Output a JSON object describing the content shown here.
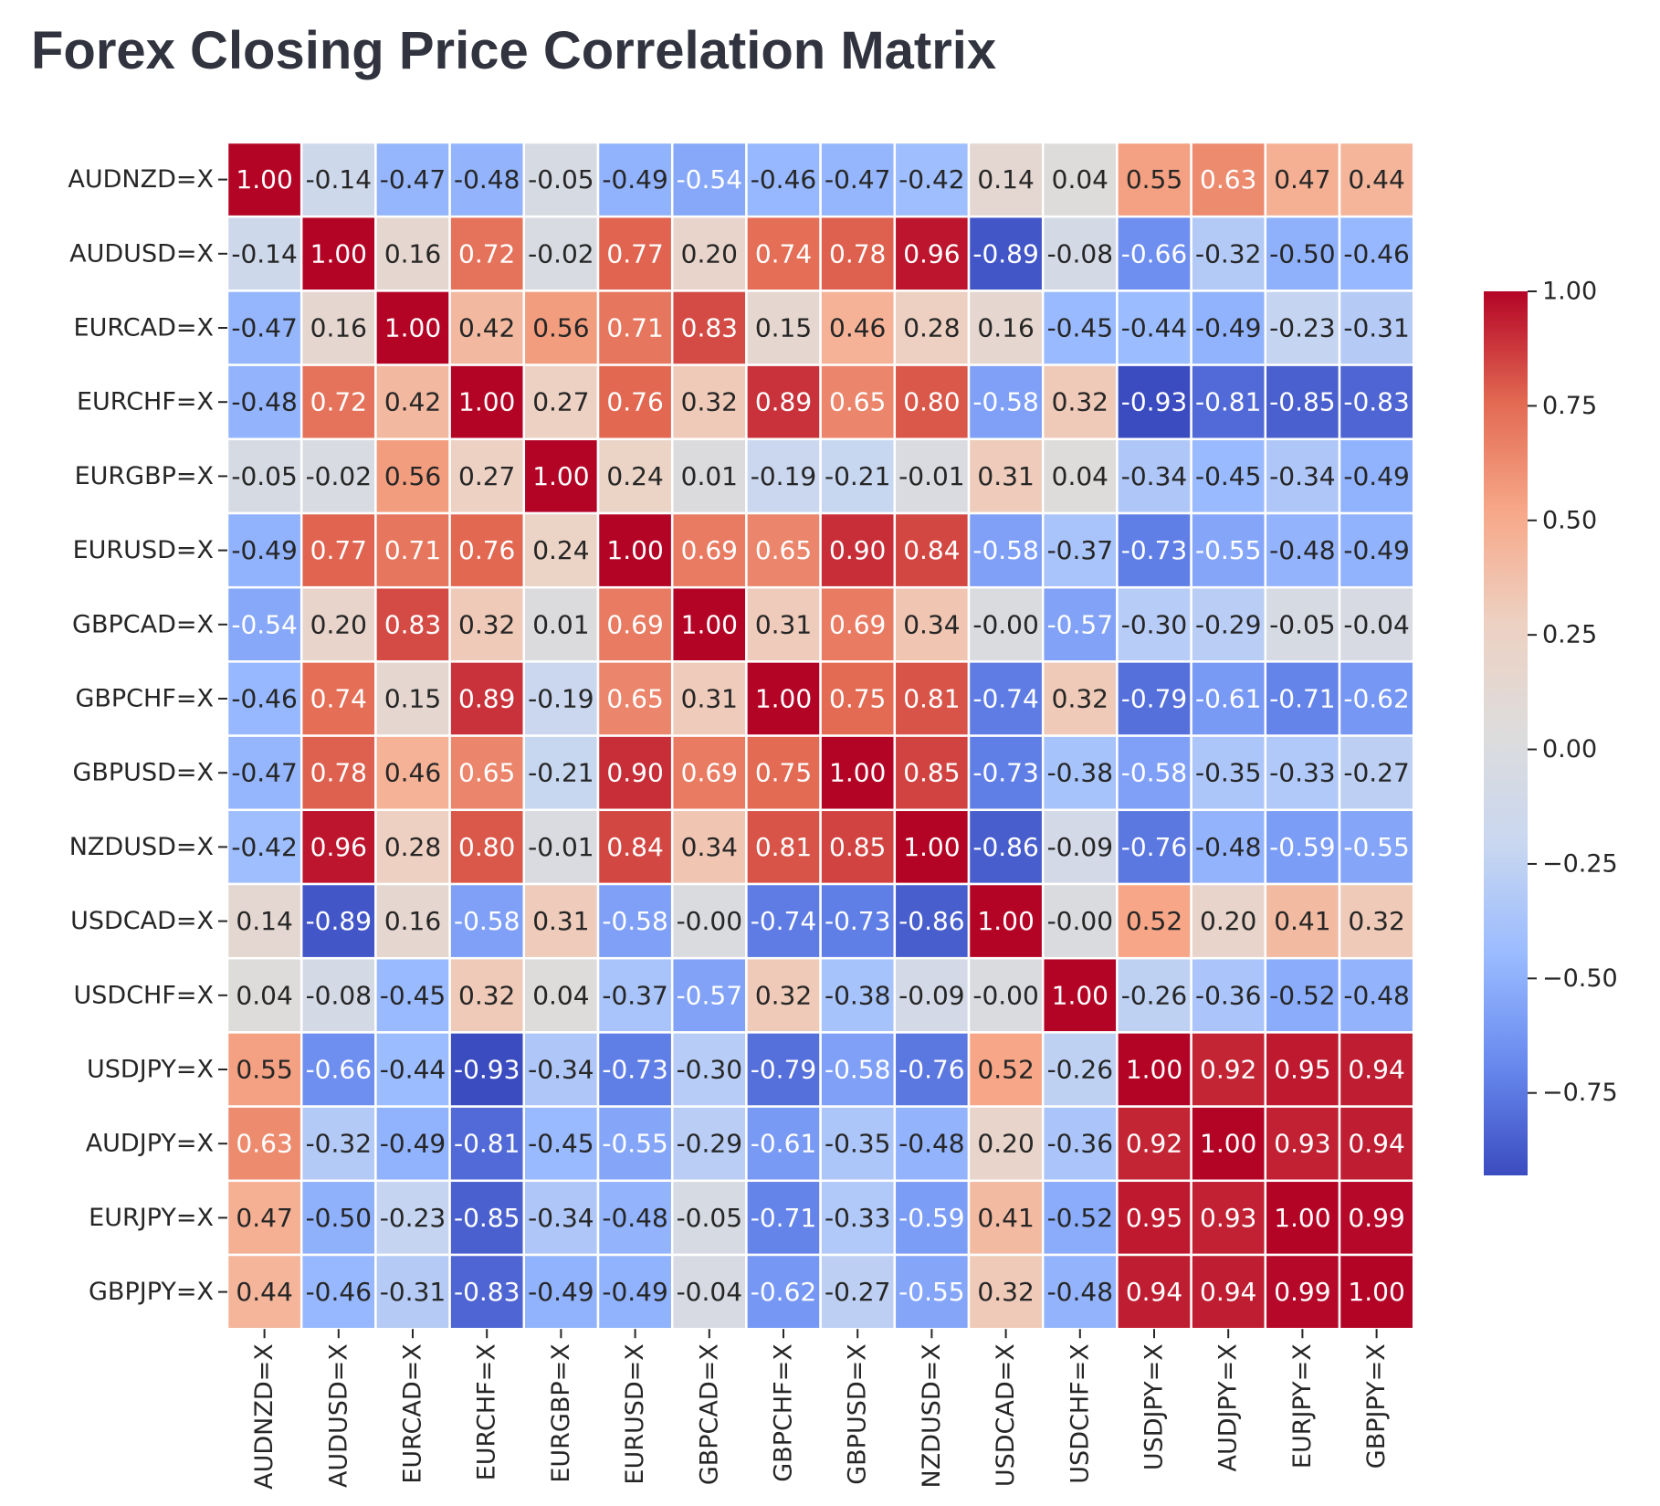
{
  "title": "Forex Closing Price Correlation Matrix",
  "chart_data": {
    "type": "heatmap",
    "title": "",
    "xlabel": "",
    "ylabel": "",
    "colormap": "coolwarm",
    "colorbar_range": [
      -0.93,
      1.0
    ],
    "colorbar_ticks": [
      1.0,
      0.75,
      0.5,
      0.25,
      0.0,
      -0.25,
      -0.5,
      -0.75
    ],
    "colorbar_tick_labels": [
      "1.00",
      "0.75",
      "0.50",
      "0.25",
      "0.00",
      "−0.25",
      "−0.50",
      "−0.75"
    ],
    "colormap_stops": [
      "#3b4cc0",
      "#6889ee",
      "#9abbff",
      "#c9d7f0",
      "#dddcdc",
      "#edd1c2",
      "#f7a889",
      "#e26952",
      "#b40426"
    ],
    "annotate": true,
    "number_format": "0.00",
    "labels": [
      "AUDNZD=X",
      "AUDUSD=X",
      "EURCAD=X",
      "EURCHF=X",
      "EURGBP=X",
      "EURUSD=X",
      "GBPCAD=X",
      "GBPCHF=X",
      "GBPUSD=X",
      "NZDUSD=X",
      "USDCAD=X",
      "USDCHF=X",
      "USDJPY=X",
      "AUDJPY=X",
      "EURJPY=X",
      "GBPJPY=X"
    ],
    "matrix": [
      [
        1.0,
        -0.14,
        -0.47,
        -0.48,
        -0.05,
        -0.49,
        -0.54,
        -0.46,
        -0.47,
        -0.42,
        0.14,
        0.04,
        0.55,
        0.63,
        0.47,
        0.44
      ],
      [
        -0.14,
        1.0,
        0.16,
        0.72,
        -0.02,
        0.77,
        0.2,
        0.74,
        0.78,
        0.96,
        -0.89,
        -0.08,
        -0.66,
        -0.32,
        -0.5,
        -0.46
      ],
      [
        -0.47,
        0.16,
        1.0,
        0.42,
        0.56,
        0.71,
        0.83,
        0.15,
        0.46,
        0.28,
        0.16,
        -0.45,
        -0.44,
        -0.49,
        -0.23,
        -0.31
      ],
      [
        -0.48,
        0.72,
        0.42,
        1.0,
        0.27,
        0.76,
        0.32,
        0.89,
        0.65,
        0.8,
        -0.58,
        0.32,
        -0.93,
        -0.81,
        -0.85,
        -0.83
      ],
      [
        -0.05,
        -0.02,
        0.56,
        0.27,
        1.0,
        0.24,
        0.01,
        -0.19,
        -0.21,
        -0.01,
        0.31,
        0.04,
        -0.34,
        -0.45,
        -0.34,
        -0.49
      ],
      [
        -0.49,
        0.77,
        0.71,
        0.76,
        0.24,
        1.0,
        0.69,
        0.65,
        0.9,
        0.84,
        -0.58,
        -0.37,
        -0.73,
        -0.55,
        -0.48,
        -0.49
      ],
      [
        -0.54,
        0.2,
        0.83,
        0.32,
        0.01,
        0.69,
        1.0,
        0.31,
        0.69,
        0.34,
        -0.0,
        -0.57,
        -0.3,
        -0.29,
        -0.05,
        -0.04
      ],
      [
        -0.46,
        0.74,
        0.15,
        0.89,
        -0.19,
        0.65,
        0.31,
        1.0,
        0.75,
        0.81,
        -0.74,
        0.32,
        -0.79,
        -0.61,
        -0.71,
        -0.62
      ],
      [
        -0.47,
        0.78,
        0.46,
        0.65,
        -0.21,
        0.9,
        0.69,
        0.75,
        1.0,
        0.85,
        -0.73,
        -0.38,
        -0.58,
        -0.35,
        -0.33,
        -0.27
      ],
      [
        -0.42,
        0.96,
        0.28,
        0.8,
        -0.01,
        0.84,
        0.34,
        0.81,
        0.85,
        1.0,
        -0.86,
        -0.09,
        -0.76,
        -0.48,
        -0.59,
        -0.55
      ],
      [
        0.14,
        -0.89,
        0.16,
        -0.58,
        0.31,
        -0.58,
        -0.0,
        -0.74,
        -0.73,
        -0.86,
        1.0,
        -0.0,
        0.52,
        0.2,
        0.41,
        0.32
      ],
      [
        0.04,
        -0.08,
        -0.45,
        0.32,
        0.04,
        -0.37,
        -0.57,
        0.32,
        -0.38,
        -0.09,
        -0.0,
        1.0,
        -0.26,
        -0.36,
        -0.52,
        -0.48
      ],
      [
        0.55,
        -0.66,
        -0.44,
        -0.93,
        -0.34,
        -0.73,
        -0.3,
        -0.79,
        -0.58,
        -0.76,
        0.52,
        -0.26,
        1.0,
        0.92,
        0.95,
        0.94
      ],
      [
        0.63,
        -0.32,
        -0.49,
        -0.81,
        -0.45,
        -0.55,
        -0.29,
        -0.61,
        -0.35,
        -0.48,
        0.2,
        -0.36,
        0.92,
        1.0,
        0.93,
        0.94
      ],
      [
        0.47,
        -0.5,
        -0.23,
        -0.85,
        -0.34,
        -0.48,
        -0.05,
        -0.71,
        -0.33,
        -0.59,
        0.41,
        -0.52,
        0.95,
        0.93,
        1.0,
        0.99
      ],
      [
        0.44,
        -0.46,
        -0.31,
        -0.83,
        -0.49,
        -0.49,
        -0.04,
        -0.62,
        -0.27,
        -0.55,
        0.32,
        -0.48,
        0.94,
        0.94,
        0.99,
        1.0
      ]
    ]
  }
}
